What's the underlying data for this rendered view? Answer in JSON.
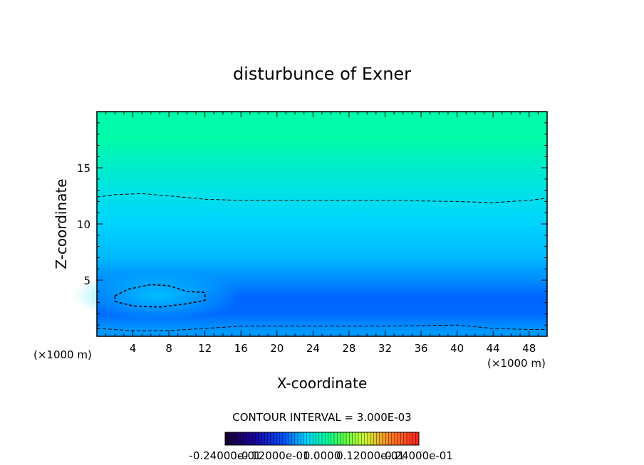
{
  "chart_data": {
    "type": "heatmap",
    "title": "disturbunce of Exner",
    "xlabel": "X-coordinate",
    "ylabel": "Z-coordinate",
    "x_unit": "(×1000 m)",
    "y_unit": "(×1000 m)",
    "xlim": [
      0,
      50
    ],
    "ylim": [
      0,
      20
    ],
    "x_ticks": [
      4,
      8,
      12,
      16,
      20,
      24,
      28,
      32,
      36,
      40,
      44,
      48
    ],
    "y_ticks": [
      5,
      10,
      15
    ],
    "contour_interval_label": "CONTOUR INTERVAL = 3.000E-03",
    "colorbar_labels": [
      "-0.24000e-01",
      "-0.12000e-01",
      "0.0000",
      "0.12000e-01",
      "0.24000e-01"
    ],
    "colorbar_range": [
      -0.024,
      0.024
    ],
    "field_rows": [
      {
        "z": 0.5,
        "value": -0.0065
      },
      {
        "z": 2.0,
        "value": -0.0085
      },
      {
        "z": 3.5,
        "value": -0.0088
      },
      {
        "z": 5.0,
        "value": -0.007
      },
      {
        "z": 7.0,
        "value": -0.0052
      },
      {
        "z": 10.0,
        "value": -0.004
      },
      {
        "z": 12.5,
        "value": -0.0028
      },
      {
        "z": 15.0,
        "value": -0.0012
      },
      {
        "z": 17.5,
        "value": 0.0005
      },
      {
        "z": 20.0,
        "value": 0.0005
      }
    ],
    "dashed_contours": [
      {
        "name": "upper",
        "points": [
          [
            0,
            12.4
          ],
          [
            2,
            12.6
          ],
          [
            5,
            12.7
          ],
          [
            8,
            12.5
          ],
          [
            12,
            12.2
          ],
          [
            16,
            12.1
          ],
          [
            24,
            12.1
          ],
          [
            32,
            12.1
          ],
          [
            40,
            12.0
          ],
          [
            44,
            11.9
          ],
          [
            48,
            12.1
          ],
          [
            50,
            12.3
          ]
        ]
      },
      {
        "name": "lower",
        "points": [
          [
            0,
            0.7
          ],
          [
            4,
            0.5
          ],
          [
            8,
            0.5
          ],
          [
            12,
            0.7
          ],
          [
            16,
            0.9
          ],
          [
            24,
            0.9
          ],
          [
            32,
            0.9
          ],
          [
            40,
            1.0
          ],
          [
            44,
            0.7
          ],
          [
            48,
            0.6
          ],
          [
            50,
            0.6
          ]
        ]
      },
      {
        "name": "minimum-closed",
        "closed": true,
        "points": [
          [
            2,
            3.6
          ],
          [
            3.5,
            4.2
          ],
          [
            6,
            4.6
          ],
          [
            8,
            4.5
          ],
          [
            10,
            4.0
          ],
          [
            12,
            3.9
          ],
          [
            12,
            3.2
          ],
          [
            10,
            2.9
          ],
          [
            7,
            2.6
          ],
          [
            4,
            2.7
          ],
          [
            2,
            3.1
          ]
        ]
      }
    ]
  }
}
